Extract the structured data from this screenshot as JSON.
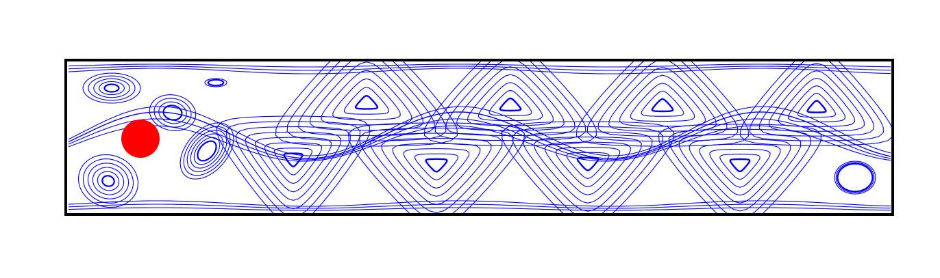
{
  "figure": {
    "description_visible_text": "",
    "colors": {
      "streamline": "#0000ff",
      "cylinder": "#ff0000",
      "channel_border": "#000000",
      "background": "#ffffff"
    },
    "vortex_count": {
      "upper_row": 7,
      "lower_row": 8
    }
  }
}
